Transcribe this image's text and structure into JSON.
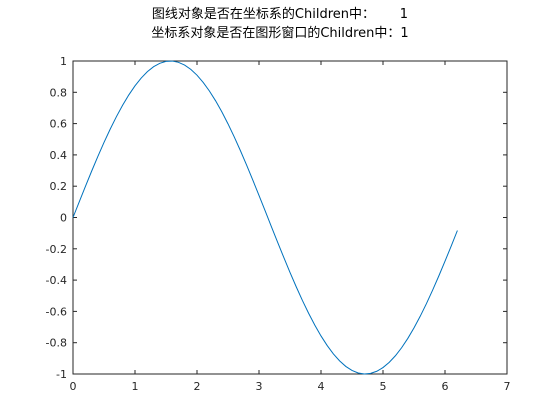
{
  "chart_data": {
    "type": "line",
    "title": [
      "图线对象是否在坐标系的Children中：      1",
      "坐标系对象是否在图形窗口的Children中：1"
    ],
    "xlabel": "",
    "ylabel": "",
    "xlim": [
      0,
      7
    ],
    "ylim": [
      -1,
      1
    ],
    "xticks": [
      "0",
      "1",
      "2",
      "3",
      "4",
      "5",
      "6",
      "7"
    ],
    "yticks": [
      "1",
      "0.8",
      "0.6",
      "0.4",
      "0.2",
      "0",
      "-0.2",
      "-0.4",
      "-0.6",
      "-0.8",
      "-1"
    ],
    "grid": false,
    "series": [
      {
        "function": "sin(x)",
        "x_start": 0,
        "x_end": 6.2,
        "x_step": 0.1,
        "color": "#0072BD"
      }
    ]
  }
}
